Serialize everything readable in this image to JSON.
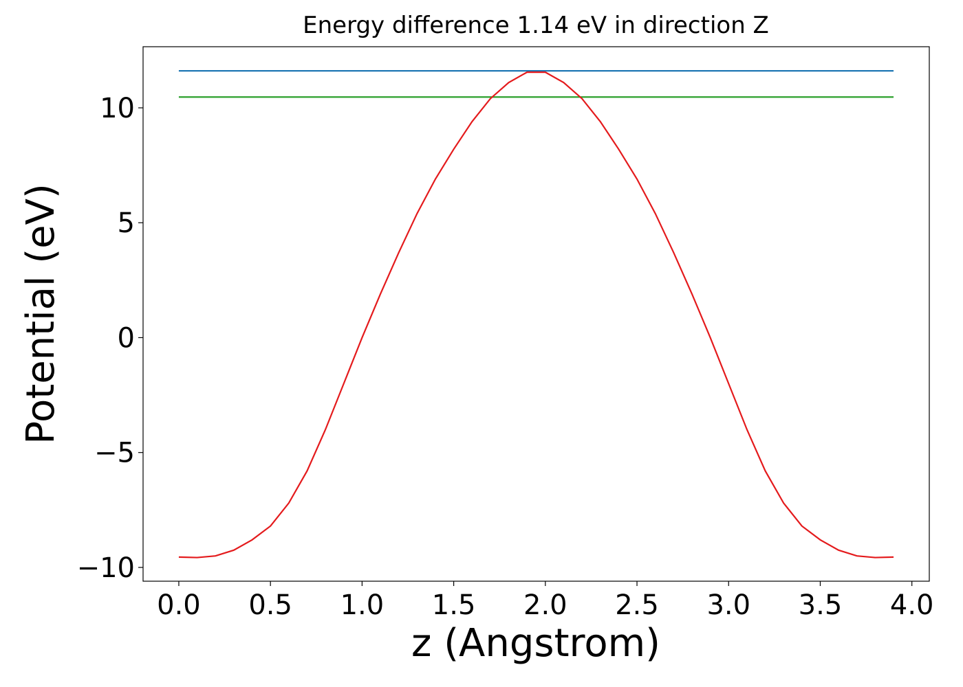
{
  "chart_data": {
    "type": "line",
    "title": "Energy difference 1.14 eV in direction Z",
    "xlabel": "z (Angstrom)",
    "ylabel": "Potential (eV)",
    "xlim": [
      -0.195,
      4.095
    ],
    "ylim": [
      -10.6,
      12.66
    ],
    "xticks": [
      {
        "value": 0,
        "label": "0.0"
      },
      {
        "value": 0.5,
        "label": "0.5"
      },
      {
        "value": 1,
        "label": "1.0"
      },
      {
        "value": 1.5,
        "label": "1.5"
      },
      {
        "value": 2,
        "label": "2.0"
      },
      {
        "value": 2.5,
        "label": "2.5"
      },
      {
        "value": 3,
        "label": "3.0"
      },
      {
        "value": 3.5,
        "label": "3.5"
      },
      {
        "value": 4,
        "label": "4.0"
      }
    ],
    "yticks": [
      {
        "value": -10,
        "label": "−10"
      },
      {
        "value": -5,
        "label": "−5"
      },
      0,
      5,
      10
    ],
    "series": [
      {
        "color": "#1f77b4",
        "x": [
          0,
          3.9
        ],
        "values": [
          11.61,
          11.61
        ]
      },
      {
        "color": "#2ca02c",
        "x": [
          0,
          3.9
        ],
        "values": [
          10.47,
          10.47
        ]
      },
      {
        "color": "#e41a1c",
        "x": [
          0,
          0.1,
          0.2,
          0.3,
          0.4,
          0.5,
          0.6,
          0.7,
          0.8,
          0.9,
          1.0,
          1.1,
          1.2,
          1.3,
          1.4,
          1.5,
          1.6,
          1.7,
          1.8,
          1.9,
          2.0,
          2.1,
          2.2,
          2.3,
          2.4,
          2.5,
          2.6,
          2.7,
          2.8,
          2.9,
          3.0,
          3.1,
          3.2,
          3.3,
          3.4,
          3.5,
          3.6,
          3.7,
          3.8,
          3.9
        ],
        "values": [
          -9.55,
          -9.57,
          -9.5,
          -9.25,
          -8.8,
          -8.2,
          -7.2,
          -5.8,
          -4.0,
          -2.0,
          0.0,
          1.9,
          3.7,
          5.4,
          6.9,
          8.2,
          9.4,
          10.4,
          11.1,
          11.55,
          11.55,
          11.1,
          10.4,
          9.4,
          8.2,
          6.9,
          5.4,
          3.7,
          1.9,
          0.0,
          -2.0,
          -4.0,
          -5.8,
          -7.2,
          -8.2,
          -8.8,
          -9.25,
          -9.5,
          -9.57,
          -9.55
        ]
      }
    ]
  }
}
